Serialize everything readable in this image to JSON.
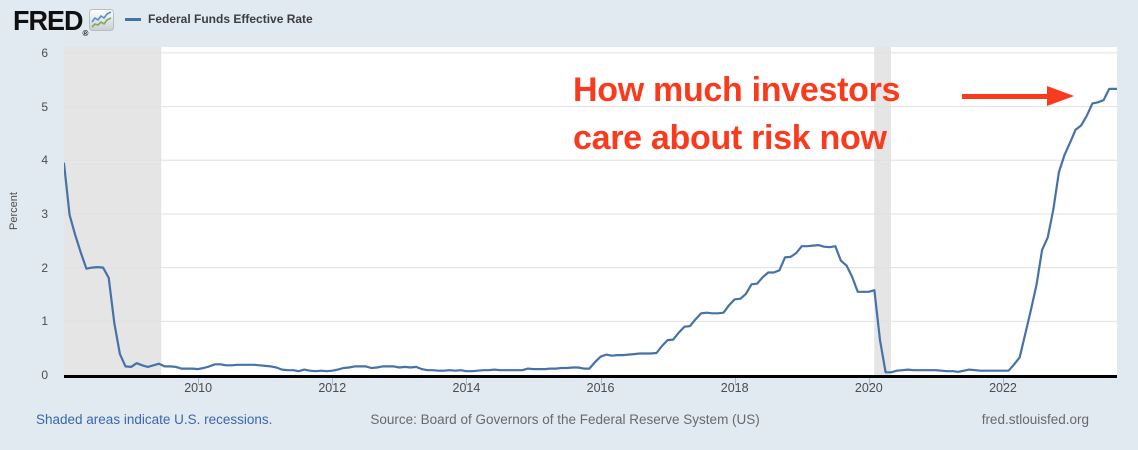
{
  "colors": {
    "background": "#e1e9f1",
    "plot_background": "#ffffff",
    "line": "#4572a7",
    "recession_band": "#e5e5e5",
    "gridline": "#e0e0e0",
    "axis": "#000000",
    "annotation_red": "#fa3a1c",
    "link_blue": "#3a67ad"
  },
  "header": {
    "logo_text": "FRED",
    "logo_reg": "®",
    "logo_icon": "sparkline-chart-icon",
    "legend": {
      "series_label": "Federal Funds Effective Rate",
      "series_color": "#4572a7"
    }
  },
  "annotation": {
    "line1": "How much investors",
    "line2": "care about risk now",
    "arrow": "right-arrow-icon"
  },
  "footer": {
    "recession_note": "Shaded areas indicate U.S. recessions.",
    "source": "Source: Board of Governors of the Federal Reserve System (US)",
    "site": "fred.stlouisfed.org"
  },
  "chart_data": {
    "type": "line",
    "title": "Federal Funds Effective Rate",
    "ylabel": "Percent",
    "xlabel": "",
    "legend_position": "top-left",
    "grid": "horizontal",
    "xlim": [
      2008.0,
      2023.7
    ],
    "ylim": [
      0,
      6.11
    ],
    "x_ticks": [
      2010,
      2012,
      2014,
      2016,
      2018,
      2020,
      2022
    ],
    "y_ticks": [
      0,
      1,
      2,
      3,
      4,
      5,
      6
    ],
    "recession_bands": [
      [
        2007.92,
        2009.45
      ],
      [
        2020.08,
        2020.33
      ]
    ],
    "series_start": {
      "year": 2008,
      "month": 1
    },
    "frequency": "monthly",
    "values": [
      3.94,
      2.98,
      2.61,
      2.28,
      1.98,
      2.0,
      2.01,
      2.0,
      1.81,
      0.97,
      0.39,
      0.16,
      0.15,
      0.22,
      0.18,
      0.15,
      0.18,
      0.21,
      0.16,
      0.16,
      0.15,
      0.12,
      0.12,
      0.12,
      0.11,
      0.13,
      0.16,
      0.2,
      0.2,
      0.18,
      0.18,
      0.19,
      0.19,
      0.19,
      0.19,
      0.18,
      0.17,
      0.16,
      0.14,
      0.1,
      0.09,
      0.09,
      0.07,
      0.1,
      0.08,
      0.07,
      0.08,
      0.07,
      0.08,
      0.1,
      0.13,
      0.14,
      0.16,
      0.16,
      0.16,
      0.13,
      0.14,
      0.16,
      0.16,
      0.16,
      0.14,
      0.15,
      0.14,
      0.15,
      0.11,
      0.09,
      0.09,
      0.08,
      0.08,
      0.09,
      0.08,
      0.09,
      0.07,
      0.07,
      0.08,
      0.09,
      0.09,
      0.1,
      0.09,
      0.09,
      0.09,
      0.09,
      0.09,
      0.12,
      0.11,
      0.11,
      0.11,
      0.12,
      0.12,
      0.13,
      0.13,
      0.14,
      0.14,
      0.12,
      0.12,
      0.24,
      0.34,
      0.38,
      0.36,
      0.37,
      0.37,
      0.38,
      0.39,
      0.4,
      0.4,
      0.4,
      0.41,
      0.54,
      0.65,
      0.66,
      0.79,
      0.9,
      0.91,
      1.04,
      1.15,
      1.16,
      1.15,
      1.15,
      1.16,
      1.3,
      1.41,
      1.42,
      1.51,
      1.69,
      1.7,
      1.82,
      1.91,
      1.91,
      1.95,
      2.19,
      2.2,
      2.27,
      2.4,
      2.4,
      2.41,
      2.42,
      2.39,
      2.38,
      2.4,
      2.13,
      2.04,
      1.83,
      1.55,
      1.55,
      1.55,
      1.58,
      0.65,
      0.05,
      0.05,
      0.08,
      0.09,
      0.1,
      0.09,
      0.09,
      0.09,
      0.09,
      0.09,
      0.08,
      0.07,
      0.07,
      0.06,
      0.08,
      0.1,
      0.09,
      0.08,
      0.08,
      0.08,
      0.08,
      0.08,
      0.08,
      0.2,
      0.33,
      0.77,
      1.21,
      1.68,
      2.33,
      2.56,
      3.08,
      3.78,
      4.1,
      4.33,
      4.57,
      4.65,
      4.83,
      5.06,
      5.08,
      5.12,
      5.33,
      5.33,
      5.33,
      5.33
    ]
  }
}
